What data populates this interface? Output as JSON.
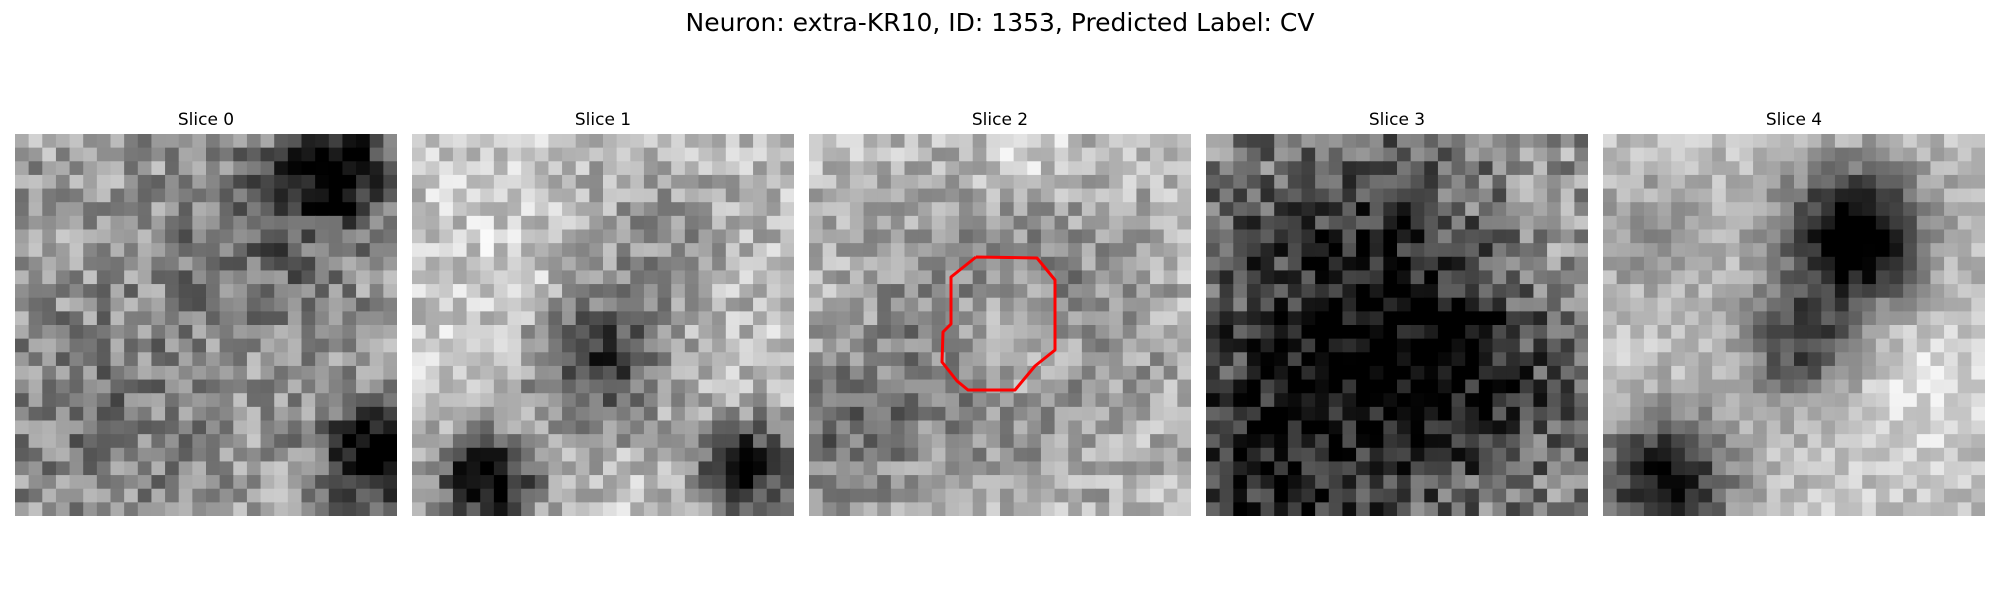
{
  "figure": {
    "title": "Neuron: extra-KR10, ID: 1353, Predicted Label: CV",
    "contour_color": "#ff0000",
    "colormap": "gray",
    "slices": [
      {
        "title": "Slice 0"
      },
      {
        "title": "Slice 1"
      },
      {
        "title": "Slice 2",
        "has_contour": true
      },
      {
        "title": "Slice 3"
      },
      {
        "title": "Slice 4"
      }
    ]
  }
}
